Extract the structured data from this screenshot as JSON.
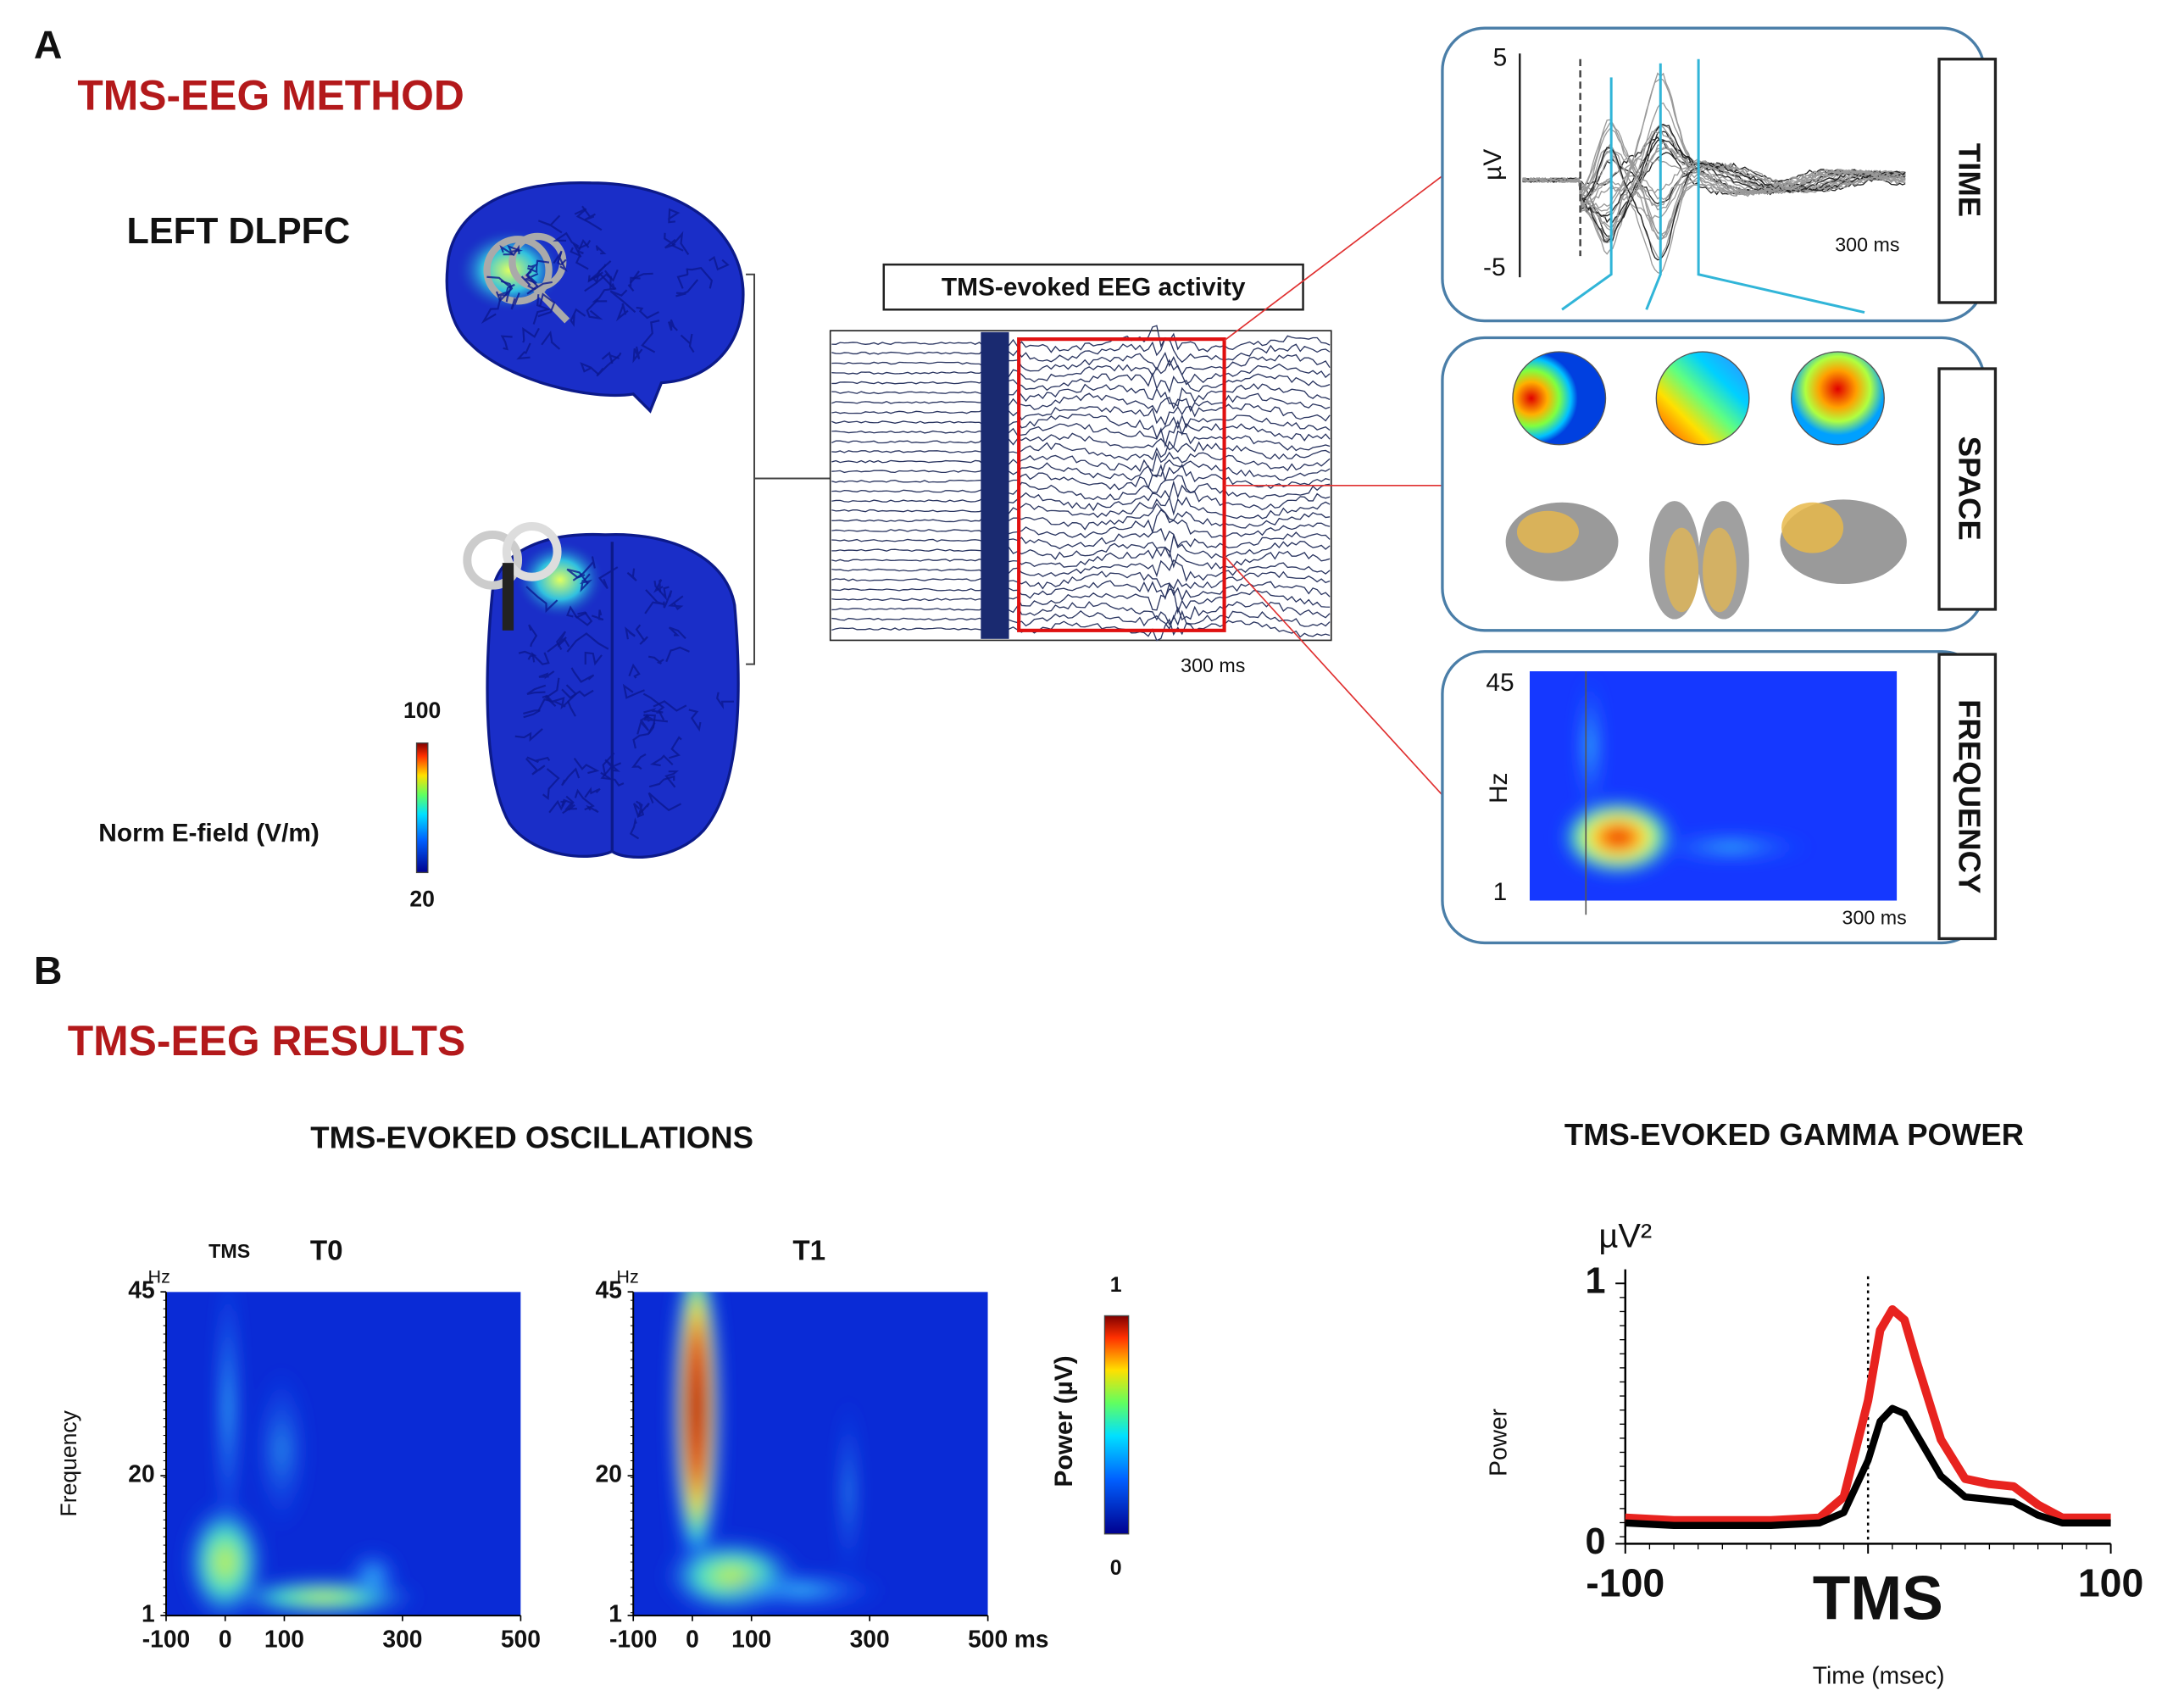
{
  "panel_a": {
    "letter": "A",
    "title": "TMS-EEG METHOD",
    "target": "LEFT DLPFC",
    "colorbar": {
      "label": "Norm E-field (V/m)",
      "max": 100,
      "min": 20
    },
    "eeg": {
      "title": "TMS-evoked EEG activity",
      "scale": "300 ms"
    },
    "time": {
      "label": "TIME",
      "y_top": 5,
      "y_bottom": -5,
      "unit": "µV",
      "scale": "300 ms"
    },
    "space": {
      "label": "SPACE"
    },
    "frequency": {
      "label": "FREQUENCY",
      "y_top": 45,
      "y_bottom": 1,
      "unit": "Hz",
      "scale": "300 ms"
    }
  },
  "panel_b": {
    "letter": "B",
    "title": "TMS-EEG RESULTS",
    "oscillations": {
      "title": "TMS-EVOKED OSCILLATIONS",
      "ylabel": "Frequency",
      "unit_y": "Hz",
      "tms": "TMS",
      "plots": [
        {
          "label": "T0"
        },
        {
          "label": "T1"
        }
      ],
      "xlim": [
        -100,
        500
      ],
      "xticks": [
        -100,
        0,
        100,
        300,
        500
      ],
      "x_unit": "ms",
      "ylim": [
        1,
        45
      ],
      "yticks": [
        1,
        20,
        45
      ],
      "colorbar": {
        "label": "Power (µV)",
        "max": 1,
        "min": 0
      }
    },
    "gamma": {
      "type": "line",
      "title": "TMS-EVOKED GAMMA POWER",
      "y_unit": "µV²",
      "ylabel": "Power",
      "xlabel": "Time (msec)",
      "xlim": [
        -100,
        100
      ],
      "xticks": [
        -100,
        {
          "value": 0,
          "label": "TMS"
        },
        100
      ],
      "ylim": [
        0,
        1
      ],
      "yticks": [
        0,
        1
      ],
      "x": [
        -100,
        -80,
        -60,
        -40,
        -20,
        -10,
        0,
        5,
        10,
        15,
        20,
        30,
        40,
        50,
        60,
        70,
        80,
        100
      ],
      "series": [
        {
          "color": "#e8231f",
          "values": [
            0.1,
            0.09,
            0.09,
            0.09,
            0.1,
            0.18,
            0.55,
            0.82,
            0.9,
            0.86,
            0.7,
            0.4,
            0.25,
            0.23,
            0.22,
            0.15,
            0.1,
            0.1
          ]
        },
        {
          "color": "#000000",
          "values": [
            0.08,
            0.07,
            0.07,
            0.07,
            0.08,
            0.12,
            0.32,
            0.47,
            0.52,
            0.5,
            0.42,
            0.26,
            0.18,
            0.17,
            0.16,
            0.11,
            0.08,
            0.08
          ]
        }
      ]
    }
  }
}
